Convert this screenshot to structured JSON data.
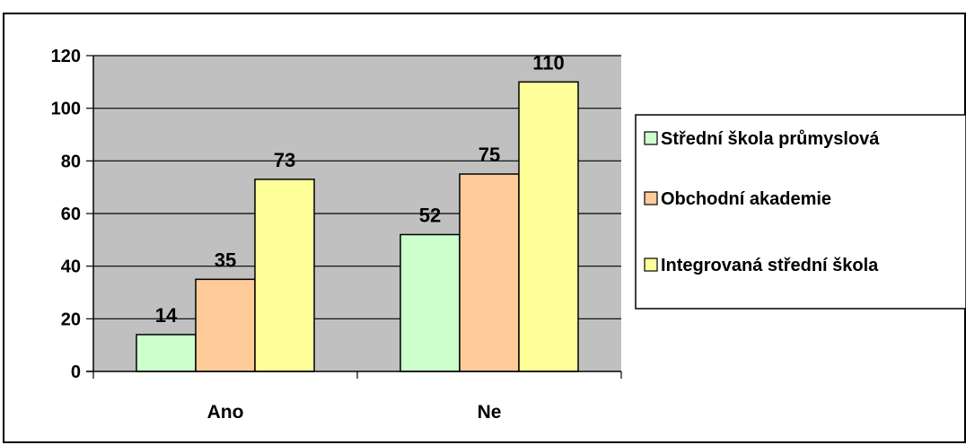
{
  "chart_data": {
    "type": "bar",
    "title": "",
    "xlabel": "",
    "ylabel": "",
    "categories": [
      "Ano",
      "Ne"
    ],
    "series": [
      {
        "name": "Střední škola průmyslová",
        "values": [
          14,
          52
        ],
        "color": "#ccffcc"
      },
      {
        "name": "Obchodní akademie",
        "values": [
          35,
          75
        ],
        "color": "#ffcc99"
      },
      {
        "name": "Integrovaná střední škola",
        "values": [
          73,
          110
        ],
        "color": "#ffff99"
      }
    ],
    "ylim": [
      0,
      120
    ],
    "yticks": [
      "0",
      "20",
      "40",
      "60",
      "80",
      "100",
      "120"
    ],
    "grid": true,
    "plot_background": "#c0c0c0",
    "data_labels": true,
    "legend_position": "right"
  }
}
